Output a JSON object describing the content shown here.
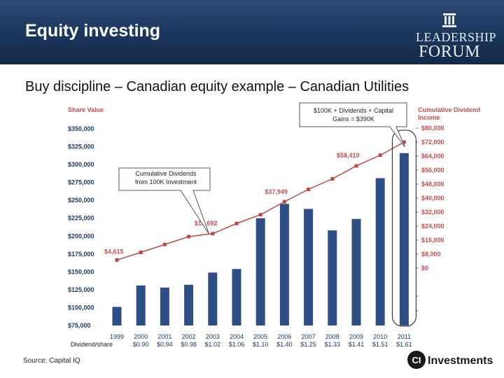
{
  "header": {
    "title": "Equity investing",
    "logo": {
      "line1": "LEADERSHIP",
      "line2": "FORUM"
    }
  },
  "subtitle": "Buy discipline – Canadian equity example – Canadian Utilities",
  "source": "Source: Capital IQ",
  "footer_logo": {
    "text": "Investments",
    "mark": "CI"
  },
  "chart_data": {
    "type": "bar+line",
    "categories": [
      "1999",
      "2000",
      "2001",
      "2002",
      "2003",
      "2004",
      "2005",
      "2006",
      "2007",
      "2008",
      "2009",
      "2010",
      "2011"
    ],
    "dividend_row_label": "Dividend/share",
    "dividends_per_share": [
      "",
      "$0.90",
      "$0.94",
      "$0.98",
      "$1.02",
      "$1.06",
      "$1.10",
      "$1.40",
      "$1.25",
      "$1.33",
      "$1.41",
      "$1.51",
      "$1.61"
    ],
    "left_axis": {
      "title": "Share Value",
      "ylim": [
        75000,
        350000
      ],
      "ticks": [
        350000,
        325000,
        300000,
        275000,
        250000,
        225000,
        200000,
        175000,
        150000,
        125000,
        100000,
        75000
      ],
      "tick_labels": [
        "$350,000",
        "$325,000",
        "$300,000",
        "$275,000",
        "$250,000",
        "$225,000",
        "$200,000",
        "$175,000",
        "$150,000",
        "$125,000",
        "$100,000",
        "$75,000"
      ]
    },
    "right_axis": {
      "title_lines": [
        "Cumulative Dividend",
        "Income"
      ],
      "ylim": [
        0,
        80000
      ],
      "ticks": [
        80000,
        72000,
        64000,
        56000,
        48000,
        40000,
        32000,
        24000,
        16000,
        8000,
        0
      ],
      "tick_labels": [
        "$80,000",
        "$72,000",
        "$64,000",
        "$56,000",
        "$48,000",
        "$40,000",
        "$32,000",
        "$24,000",
        "$16,000",
        "$8,000",
        "$0"
      ]
    },
    "series": [
      {
        "name": "Share Value",
        "axis": "left",
        "color": "#2e4f86",
        "values": [
          101000,
          131000,
          128000,
          132000,
          149000,
          154000,
          225000,
          245000,
          238000,
          208000,
          224000,
          281000,
          316000
        ]
      },
      {
        "name": "Cumulative Dividend Income",
        "axis": "right",
        "color": "#b94a48",
        "values": [
          4615,
          9000,
          13500,
          18000,
          19692,
          25500,
          30500,
          37949,
          45000,
          51000,
          58410,
          64500,
          72000
        ]
      }
    ],
    "point_labels": [
      {
        "index": 0,
        "text": "$4,615"
      },
      {
        "index": 4,
        "text": "$19,692"
      },
      {
        "index": 7,
        "text": "$37,949"
      },
      {
        "index": 10,
        "text": "$58,410"
      }
    ],
    "callouts": [
      {
        "text_lines": [
          "Cumulative Dividends",
          "from 100K Investment"
        ],
        "target_index": 4
      },
      {
        "text_lines": [
          "$100K + Dividends + Capital",
          "Gains = $390K"
        ],
        "target_index": 12
      }
    ],
    "colors": {
      "axis_title": "#c0504d",
      "left_ticks": "#1f3864",
      "right_ticks": "#c0504d",
      "label_gold": "#c0504d"
    }
  }
}
